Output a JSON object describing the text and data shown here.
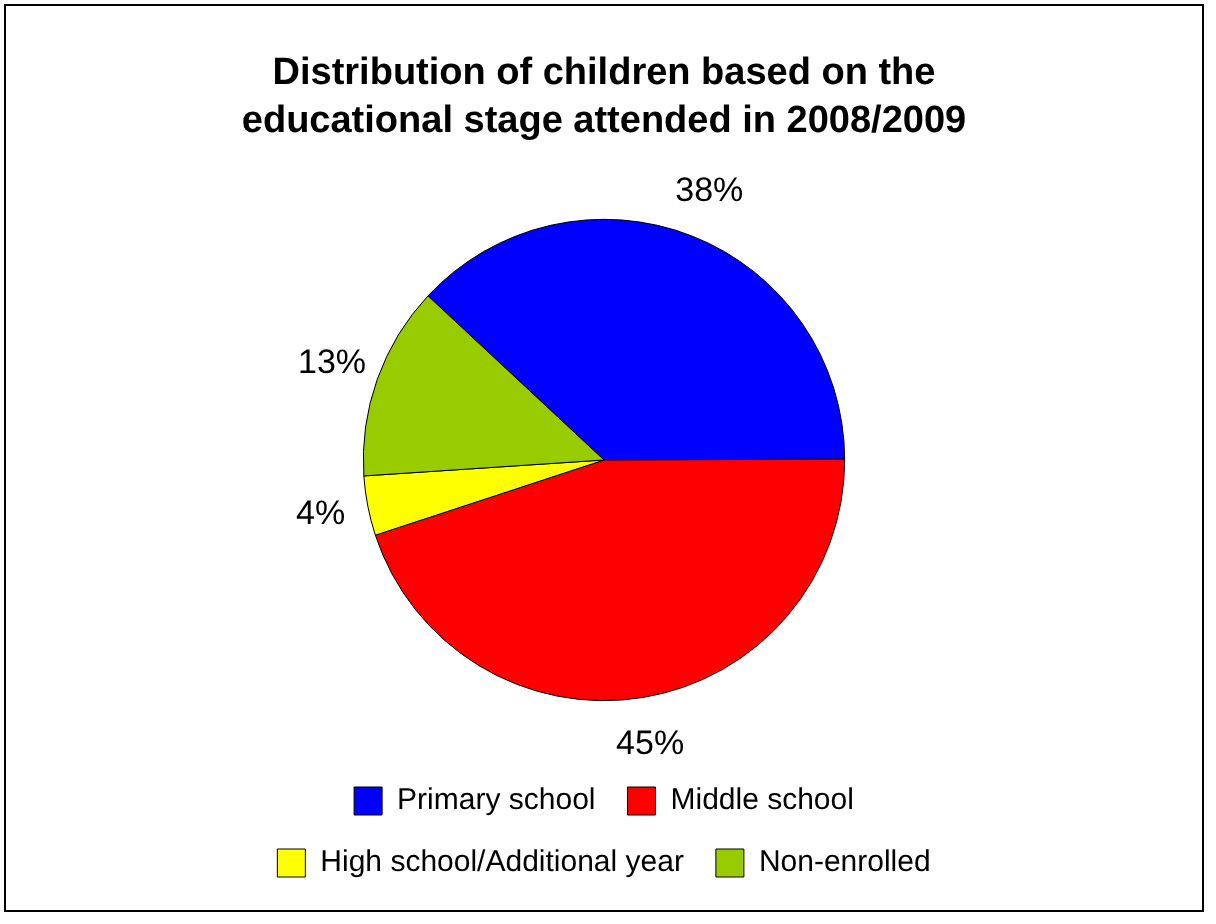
{
  "chart_data": {
    "type": "pie",
    "title": "Distribution of children based on the educational stage attended in  2008/2009",
    "categories": [
      "Primary school",
      "Middle school",
      "High school/Additional year",
      "Non-enrolled"
    ],
    "values": [
      38,
      45,
      4,
      13
    ],
    "colors": [
      "#0000ff",
      "#ff0000",
      "#ffff00",
      "#99cc00"
    ],
    "value_labels": [
      "38%",
      "45%",
      "4%",
      "13%"
    ],
    "legend": "bottom"
  }
}
